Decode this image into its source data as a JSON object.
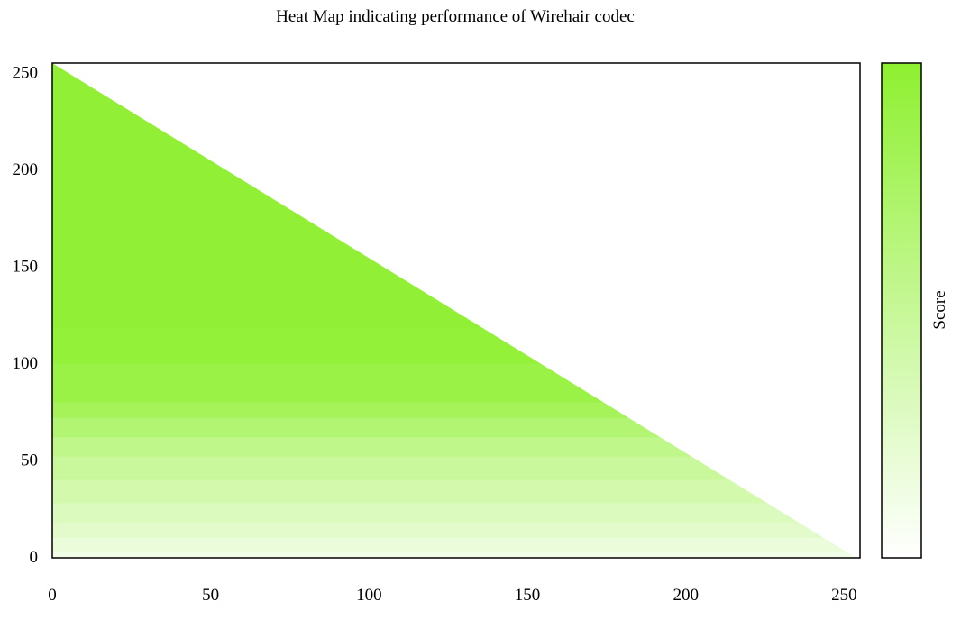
{
  "chart_data": {
    "type": "heatmap",
    "title": "Heat Map indicating performance of Wirehair codec",
    "xlabel": "",
    "ylabel": "",
    "xlim": [
      0,
      255
    ],
    "ylim": [
      0,
      255
    ],
    "x_ticks": [
      "0",
      "50",
      "100",
      "150",
      "200",
      "250"
    ],
    "y_ticks": [
      "0",
      "50",
      "100",
      "150",
      "200",
      "250"
    ],
    "colorbar": {
      "label": "Score",
      "low_color": "#ffffff",
      "high_color": "#8ef030"
    },
    "grid": false,
    "region": "lower-left triangle, x + y <= 255",
    "score_by_y_band": [
      {
        "y_from": 0,
        "y_to": 3,
        "score": 0.12
      },
      {
        "y_from": 3,
        "y_to": 10,
        "score": 0.18
      },
      {
        "y_from": 10,
        "y_to": 18,
        "score": 0.25
      },
      {
        "y_from": 18,
        "y_to": 28,
        "score": 0.32
      },
      {
        "y_from": 28,
        "y_to": 40,
        "score": 0.4
      },
      {
        "y_from": 40,
        "y_to": 52,
        "score": 0.48
      },
      {
        "y_from": 52,
        "y_to": 62,
        "score": 0.56
      },
      {
        "y_from": 62,
        "y_to": 72,
        "score": 0.68
      },
      {
        "y_from": 72,
        "y_to": 80,
        "score": 0.8
      },
      {
        "y_from": 80,
        "y_to": 100,
        "score": 0.9
      },
      {
        "y_from": 100,
        "y_to": 118,
        "score": 0.95
      },
      {
        "y_from": 118,
        "y_to": 255,
        "score": 0.97
      }
    ]
  }
}
